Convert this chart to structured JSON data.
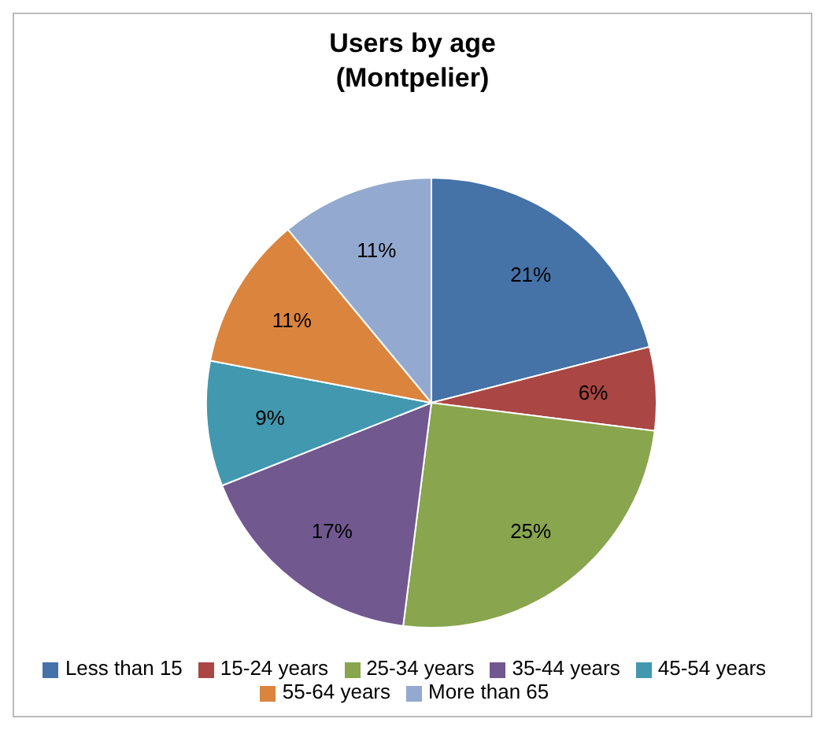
{
  "chart_data": {
    "type": "pie",
    "title": "Users by age\n(Montpelier)",
    "categories": [
      "Less than 15",
      "15-24 years",
      "25-34 years",
      "35-44 years",
      "45-54 years",
      "55-64 years",
      "More than 65"
    ],
    "values": [
      21,
      6,
      25,
      17,
      9,
      11,
      11
    ],
    "colors": [
      "#4572a7",
      "#aa4643",
      "#89a54e",
      "#71588f",
      "#4198af",
      "#db843d",
      "#93a9cf"
    ],
    "value_labels": [
      "21%",
      "6%",
      "25%",
      "17%",
      "9%",
      "11%",
      "11%"
    ],
    "legend": "bottom"
  }
}
